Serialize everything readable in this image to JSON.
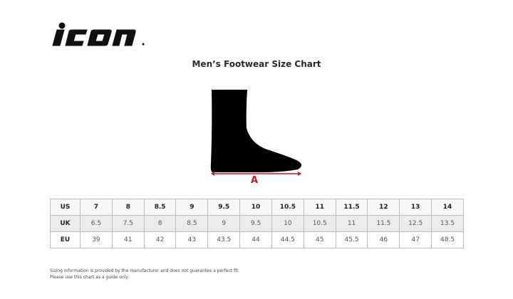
{
  "brand": {
    "logo_text": "icon"
  },
  "title": "Men’s Footwear Size Chart",
  "diagram": {
    "measure_label": "A",
    "accent_color": "#d0141a"
  },
  "table": {
    "rows": [
      {
        "label": "US",
        "values": [
          "7",
          "8",
          "8.5",
          "9",
          "9.5",
          "10",
          "10.5",
          "11",
          "11.5",
          "12",
          "13",
          "14"
        ]
      },
      {
        "label": "UK",
        "values": [
          "6.5",
          "7.5",
          "8",
          "8.5",
          "9",
          "9.5",
          "10",
          "10.5",
          "11",
          "11.5",
          "12.5",
          "13.5"
        ]
      },
      {
        "label": "EU",
        "values": [
          "39",
          "41",
          "42",
          "43",
          "43.5",
          "44",
          "44.5",
          "45",
          "45.5",
          "46",
          "47",
          "48.5"
        ]
      }
    ]
  },
  "notes": [
    "Sizing information is provided by the manufacturer and does not guarantee a perfect fit.",
    "Please use this chart as a guide only."
  ]
}
